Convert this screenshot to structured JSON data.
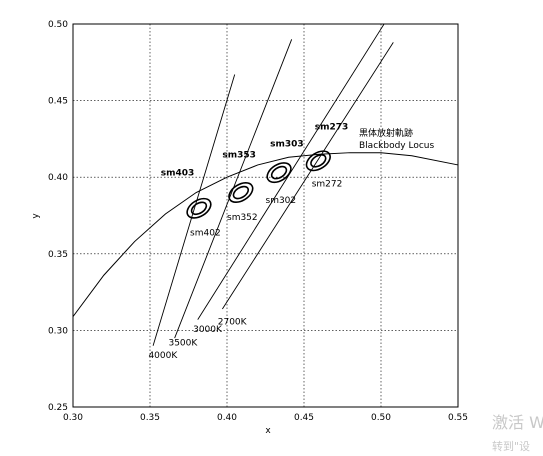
{
  "chart_data": {
    "type": "line",
    "xlabel": "x",
    "ylabel": "y",
    "xlim": [
      0.3,
      0.55
    ],
    "ylim": [
      0.25,
      0.5
    ],
    "xticks": [
      0.3,
      0.35,
      0.4,
      0.45,
      0.5,
      0.55
    ],
    "yticks": [
      0.25,
      0.3,
      0.35,
      0.4,
      0.45,
      0.5
    ],
    "xtick_labels": [
      "0.30",
      "0.35",
      "0.40",
      "0.45",
      "0.50",
      "0.55"
    ],
    "ytick_labels": [
      "0.25",
      "0.30",
      "0.35",
      "0.40",
      "0.45",
      "0.50"
    ],
    "grid": true,
    "blackbody_label_cn": "黒体放射軌跡",
    "blackbody_label_en": "Blackbody Locus",
    "locus": {
      "x": [
        0.3,
        0.32,
        0.34,
        0.36,
        0.38,
        0.4,
        0.42,
        0.44,
        0.46,
        0.48,
        0.5,
        0.52,
        0.55
      ],
      "y": [
        0.309,
        0.336,
        0.358,
        0.376,
        0.39,
        0.4,
        0.408,
        0.413,
        0.415,
        0.416,
        0.416,
        0.414,
        0.408
      ]
    },
    "isotherms": [
      {
        "label": "4000K",
        "x": [
          0.352,
          0.405
        ],
        "y": [
          0.29,
          0.467
        ]
      },
      {
        "label": "3500K",
        "x": [
          0.366,
          0.442
        ],
        "y": [
          0.295,
          0.49
        ]
      },
      {
        "label": "3000K",
        "x": [
          0.381,
          0.502
        ],
        "y": [
          0.307,
          0.5
        ]
      },
      {
        "label": "2700K",
        "x": [
          0.397,
          0.508
        ],
        "y": [
          0.314,
          0.488
        ]
      }
    ],
    "ellipses": [
      {
        "cx": 0.3818,
        "cy": 0.3797,
        "rx": 0.0052,
        "ry": 0.0085,
        "angle": 58
      },
      {
        "cx": 0.3818,
        "cy": 0.3797,
        "rx": 0.0032,
        "ry": 0.0053,
        "angle": 58
      },
      {
        "cx": 0.409,
        "cy": 0.39,
        "rx": 0.0052,
        "ry": 0.0085,
        "angle": 58
      },
      {
        "cx": 0.409,
        "cy": 0.39,
        "rx": 0.0032,
        "ry": 0.0053,
        "angle": 58
      },
      {
        "cx": 0.4338,
        "cy": 0.403,
        "rx": 0.0052,
        "ry": 0.0085,
        "angle": 58
      },
      {
        "cx": 0.4338,
        "cy": 0.403,
        "rx": 0.0032,
        "ry": 0.0053,
        "angle": 58
      },
      {
        "cx": 0.4593,
        "cy": 0.4107,
        "rx": 0.0052,
        "ry": 0.0085,
        "angle": 58
      },
      {
        "cx": 0.4593,
        "cy": 0.4107,
        "rx": 0.0032,
        "ry": 0.0053,
        "angle": 58
      }
    ],
    "annotations": [
      {
        "text": "sm403",
        "bold": true,
        "x": 0.357,
        "y": 0.401
      },
      {
        "text": "sm353",
        "bold": true,
        "x": 0.397,
        "y": 0.413
      },
      {
        "text": "sm303",
        "bold": true,
        "x": 0.428,
        "y": 0.42
      },
      {
        "text": "sm273",
        "bold": true,
        "x": 0.457,
        "y": 0.431
      },
      {
        "text": "sm402",
        "bold": false,
        "x": 0.376,
        "y": 0.362
      },
      {
        "text": "sm352",
        "bold": false,
        "x": 0.4,
        "y": 0.372
      },
      {
        "text": "sm302",
        "bold": false,
        "x": 0.425,
        "y": 0.383
      },
      {
        "text": "sm272",
        "bold": false,
        "x": 0.455,
        "y": 0.394
      },
      {
        "text": "4000K",
        "bold": false,
        "x": 0.349,
        "y": 0.282
      },
      {
        "text": "3500K",
        "bold": false,
        "x": 0.362,
        "y": 0.29
      },
      {
        "text": "3000K",
        "bold": false,
        "x": 0.378,
        "y": 0.299
      },
      {
        "text": "2700K",
        "bold": false,
        "x": 0.394,
        "y": 0.304
      }
    ]
  },
  "watermark": {
    "line1": "激活 W",
    "line2": "转到\"设"
  }
}
